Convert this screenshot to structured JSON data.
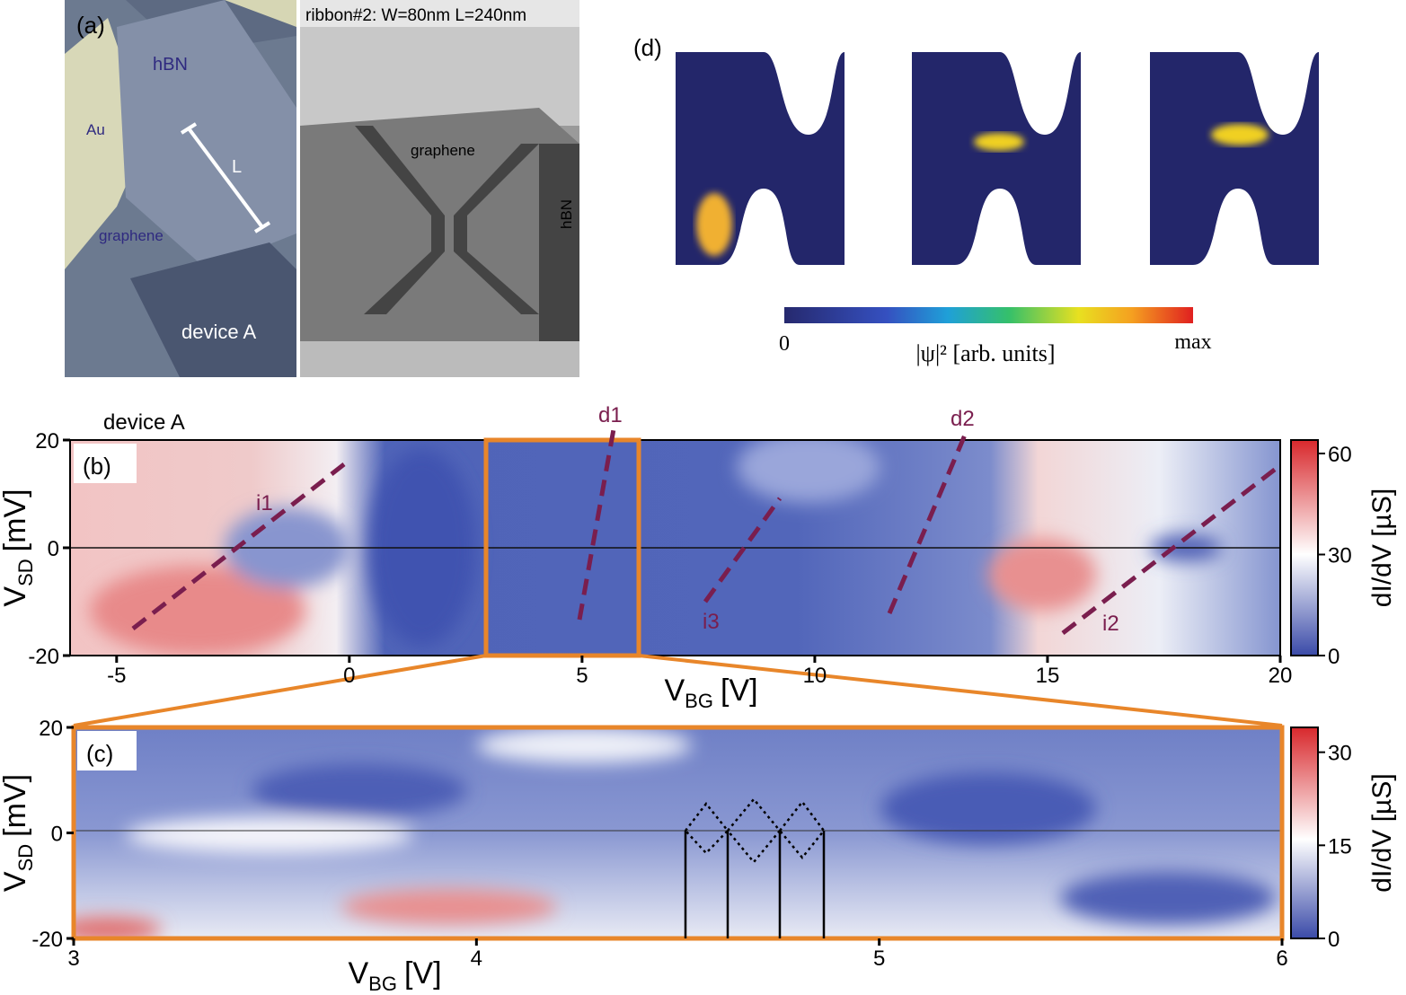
{
  "panel_a": {
    "label": "(a)",
    "optical": {
      "hbn": "hBN",
      "au": "Au",
      "length": "L",
      "graphene": "graphene",
      "device": "device A"
    },
    "afm": {
      "caption": "ribbon#2: W=80nm L=240nm",
      "graphene": "graphene",
      "hbn": "hBN"
    }
  },
  "panel_d": {
    "label": "(d)",
    "colorbar": {
      "min_label": "0",
      "max_label": "max",
      "label": "|ψ|² [arb. units]"
    }
  },
  "panel_b": {
    "label": "(b)",
    "device": "device A",
    "xlabel": {
      "main": "V",
      "sub": "BG",
      "unit": "[V]"
    },
    "ylabel": {
      "main": "V",
      "sub": "SD",
      "unit": "[mV]"
    },
    "xlim": [
      -6,
      20
    ],
    "xticks": [
      -5,
      0,
      5,
      10,
      15,
      20
    ],
    "ylim": [
      -20,
      20
    ],
    "yticks": [
      -20,
      0,
      20
    ],
    "clim": [
      0,
      64
    ],
    "cticks": [
      0,
      30,
      60
    ],
    "clabel": "dI/dV [µS]",
    "annotations": [
      "d1",
      "d2",
      "i1",
      "i2",
      "i3"
    ]
  },
  "panel_c": {
    "label": "(c)",
    "xlabel": {
      "main": "V",
      "sub": "BG",
      "unit": "[V]"
    },
    "ylabel": {
      "main": "V",
      "sub": "SD",
      "unit": "[mV]"
    },
    "xlim": [
      3,
      6
    ],
    "xticks": [
      3,
      4,
      5,
      6
    ],
    "ylim": [
      -20,
      20
    ],
    "yticks": [
      -20,
      0,
      20
    ],
    "clim": [
      0,
      34
    ],
    "cticks": [
      0,
      15,
      30
    ],
    "clabel": "dI/dV [µS]"
  }
}
